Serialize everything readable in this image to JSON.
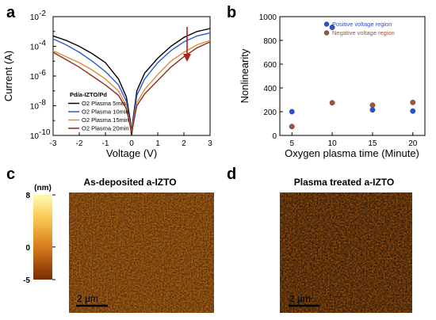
{
  "panels": {
    "a": "a",
    "b": "b",
    "c": "c",
    "d": "d"
  },
  "chart_data": [
    {
      "type": "line",
      "panel": "a",
      "xlabel": "Voltage (V)",
      "ylabel": "Current (A)",
      "xlim": [
        -3,
        3
      ],
      "ylim_log10": [
        -10,
        -2
      ],
      "log_y": true,
      "x_ticks": [
        -3,
        -2,
        -1,
        0,
        1,
        2,
        3
      ],
      "y_tick_labels": [
        {
          "exp": -10,
          "base": "10",
          "sup": "-10"
        },
        {
          "exp": -8,
          "base": "10",
          "sup": "-8"
        },
        {
          "exp": -6,
          "base": "10",
          "sup": "-6"
        },
        {
          "exp": -4,
          "base": "10",
          "sup": "-4"
        },
        {
          "exp": -2,
          "base": "10",
          "sup": "-2"
        }
      ],
      "legend_title": "Pd/a-IZTO/Pd",
      "legend_position": "bottom-left",
      "annotation": "downward arrow near V = 2.1",
      "series": [
        {
          "name": "O2 Plasma 5min",
          "color": "#000000",
          "x": [
            -3,
            -2.5,
            -2,
            -1.5,
            -1,
            -0.5,
            -0.2,
            -0.05,
            0,
            0.05,
            0.2,
            0.5,
            1,
            1.5,
            2,
            2.5,
            3
          ],
          "y_log10": [
            -3.3,
            -3.6,
            -4.0,
            -4.5,
            -5.1,
            -6.2,
            -7.4,
            -9.0,
            -9.8,
            -9.0,
            -7.0,
            -5.8,
            -4.8,
            -4.0,
            -3.4,
            -3.0,
            -2.8
          ]
        },
        {
          "name": "O2 Plasma 10min",
          "color": "#2b5bd7",
          "x": [
            -3,
            -2.5,
            -2,
            -1.5,
            -1,
            -0.5,
            -0.2,
            -0.05,
            0,
            0.05,
            0.2,
            0.5,
            1,
            1.5,
            2,
            2.5,
            3
          ],
          "y_log10": [
            -3.5,
            -3.9,
            -4.4,
            -5.0,
            -5.7,
            -6.6,
            -7.7,
            -9.2,
            -9.9,
            -9.2,
            -7.3,
            -6.2,
            -5.1,
            -4.3,
            -3.7,
            -3.3,
            -3.1
          ]
        },
        {
          "name": "O2 Plasma 15min",
          "color": "#e08a3c",
          "x": [
            -3,
            -2.5,
            -2,
            -1.5,
            -1,
            -0.5,
            -0.2,
            -0.05,
            0,
            0.05,
            0.2,
            0.5,
            1,
            1.5,
            2,
            2.5,
            3
          ],
          "y_log10": [
            -4.3,
            -4.7,
            -5.1,
            -5.6,
            -6.2,
            -7.0,
            -8.0,
            -9.3,
            -10.0,
            -9.3,
            -7.8,
            -6.9,
            -5.9,
            -5.0,
            -4.4,
            -3.9,
            -3.6
          ]
        },
        {
          "name": "O2 Plasma 20min",
          "color": "#8b2f1c",
          "x": [
            -3,
            -2.5,
            -2,
            -1.5,
            -1,
            -0.5,
            -0.2,
            -0.05,
            0,
            0.05,
            0.2,
            0.5,
            1,
            1.5,
            2,
            2.5,
            3
          ],
          "y_log10": [
            -4.4,
            -4.9,
            -5.4,
            -6.0,
            -6.6,
            -7.3,
            -8.2,
            -9.4,
            -10.0,
            -9.4,
            -8.0,
            -7.2,
            -6.3,
            -5.4,
            -4.7,
            -4.1,
            -3.7
          ]
        }
      ]
    },
    {
      "type": "scatter",
      "panel": "b",
      "xlabel": "Oxygen plasma time (Minute)",
      "ylabel": "Nonlinearity",
      "xlim": [
        3.5,
        21.5
      ],
      "ylim": [
        0,
        1000
      ],
      "x_ticks": [
        5,
        10,
        15,
        20
      ],
      "y_ticks": [
        0,
        200,
        400,
        600,
        800,
        1000
      ],
      "legend_position": "top-right",
      "series": [
        {
          "name": "Positive voltage region",
          "color": "#2b4fd6",
          "x": [
            5,
            10,
            15,
            20
          ],
          "y": [
            200,
            910,
            215,
            205
          ]
        },
        {
          "name": "Negative voltage region",
          "color": "#a4523a",
          "x": [
            5,
            10,
            15,
            20
          ],
          "y": [
            75,
            275,
            255,
            278
          ]
        }
      ]
    }
  ],
  "afm": {
    "left_title": "As-deposited  a-IZTO",
    "right_title": "Plasma treated a-IZTO",
    "colorbar_unit": "(nm)",
    "colorbar_ticks": [
      {
        "value": 8,
        "label": "8"
      },
      {
        "value": 0,
        "label": "0"
      },
      {
        "value": -5,
        "label": "-5"
      }
    ],
    "colorbar_range": [
      -5,
      8
    ],
    "scale_bar_label": "2 μm",
    "colors": {
      "low": "#7a2a05",
      "mid": "#d97a1c",
      "high": "#fffbb0"
    }
  }
}
